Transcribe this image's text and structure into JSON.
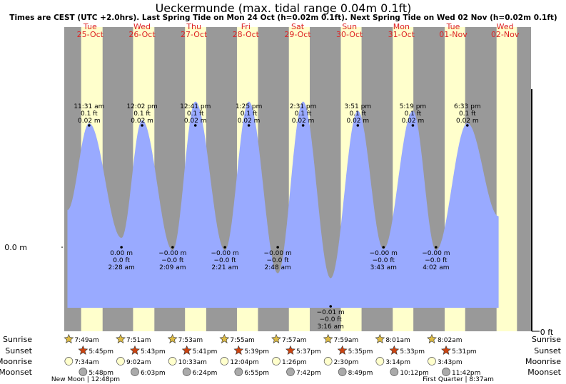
{
  "chart_data": {
    "type": "area",
    "title": "Ueckermunde (max. tidal range 0.04m 0.1ft)",
    "subtitle": "Times are CEST (UTC +2.0hrs). Last Spring Tide on Mon 24 Oct (h=0.02m 0.1ft). Next Spring Tide on Wed 02 Nov (h=0.02m 0.1ft)",
    "x_range_hours": [
      0,
      216
    ],
    "y_range_m": [
      -0.0185,
      0.0265
    ],
    "y_axis_left_label": "0.0 m",
    "y_axis_right_label": "0 ft",
    "days": [
      {
        "dow": "Tue",
        "date": "25-Oct",
        "sunrise": "7:49am",
        "sunset": "5:45pm",
        "moonrise": "7:34am",
        "moonset": "5:48pm",
        "rise_h": 7.817,
        "set_h": 17.75
      },
      {
        "dow": "Wed",
        "date": "26-Oct",
        "sunrise": "7:51am",
        "sunset": "5:43pm",
        "moonrise": "9:02am",
        "moonset": "6:03pm",
        "rise_h": 7.85,
        "set_h": 17.717
      },
      {
        "dow": "Thu",
        "date": "27-Oct",
        "sunrise": "7:53am",
        "sunset": "5:41pm",
        "moonrise": "10:33am",
        "moonset": "6:24pm",
        "rise_h": 7.883,
        "set_h": 17.683
      },
      {
        "dow": "Fri",
        "date": "28-Oct",
        "sunrise": "7:55am",
        "sunset": "5:39pm",
        "moonrise": "12:04pm",
        "moonset": "6:55pm",
        "rise_h": 7.917,
        "set_h": 17.65
      },
      {
        "dow": "Sat",
        "date": "29-Oct",
        "sunrise": "7:57am",
        "sunset": "5:37pm",
        "moonrise": "1:26pm",
        "moonset": "7:42pm",
        "rise_h": 7.95,
        "set_h": 17.617
      },
      {
        "dow": "Sun",
        "date": "30-Oct",
        "sunrise": "7:59am",
        "sunset": "5:35pm",
        "moonrise": "2:30pm",
        "moonset": "8:49pm",
        "rise_h": 7.983,
        "set_h": 17.583
      },
      {
        "dow": "Mon",
        "date": "31-Oct",
        "sunrise": "8:01am",
        "sunset": "5:33pm",
        "moonrise": "3:14pm",
        "moonset": "10:12pm",
        "rise_h": 8.017,
        "set_h": 17.55
      },
      {
        "dow": "Tue",
        "date": "01-Nov",
        "sunrise": "8:02am",
        "sunset": "5:31pm",
        "moonrise": "3:43pm",
        "moonset": "11:42pm",
        "rise_h": 8.033,
        "set_h": 17.517
      },
      {
        "dow": "Wed",
        "date": "02-Nov",
        "sunrise": "",
        "sunset": "",
        "moonrise": "",
        "moonset": "",
        "rise_h": 8.05,
        "set_h": 17.5
      }
    ],
    "tides": [
      {
        "type": "high",
        "time": "11:31 am",
        "ft": "0.1 ft",
        "m": "0.02 m",
        "t": 11.517,
        "h": 0.02
      },
      {
        "type": "low",
        "time": "2:28 am",
        "ft": "0.0 ft",
        "m": "0.00 m",
        "t": 26.467,
        "h": 0.0015
      },
      {
        "type": "high",
        "time": "12:02 pm",
        "ft": "0.1 ft",
        "m": "0.02 m",
        "t": 36.033,
        "h": 0.0205
      },
      {
        "type": "low",
        "time": "2:09 am",
        "ft": "−0.0 ft",
        "m": "−0.00 m",
        "t": 50.15,
        "h": -0.0005
      },
      {
        "type": "high",
        "time": "12:41 pm",
        "ft": "0.1 ft",
        "m": "0.02 m",
        "t": 60.683,
        "h": 0.0235
      },
      {
        "type": "low",
        "time": "2:21 am",
        "ft": "−0.0 ft",
        "m": "−0.00 m",
        "t": 74.35,
        "h": -0.0005
      },
      {
        "type": "high",
        "time": "1:25 pm",
        "ft": "0.1 ft",
        "m": "0.02 m",
        "t": 85.417,
        "h": 0.0235
      },
      {
        "type": "low",
        "time": "2:48 am",
        "ft": "−0.0 ft",
        "m": "−0.00 m",
        "t": 98.8,
        "h": -0.0042
      },
      {
        "type": "high",
        "time": "2:31 pm",
        "ft": "0.1 ft",
        "m": "0.02 m",
        "t": 110.517,
        "h": 0.0235
      },
      {
        "type": "low",
        "time": "3:16 am",
        "ft": "−0.0 ft",
        "m": "−0.01 m",
        "t": 123.267,
        "h": -0.005
      },
      {
        "type": "high",
        "time": "3:51 pm",
        "ft": "0.1 ft",
        "m": "0.02 m",
        "t": 135.85,
        "h": 0.022
      },
      {
        "type": "low",
        "time": "3:43 am",
        "ft": "−0.0 ft",
        "m": "−0.00 m",
        "t": 147.717,
        "h": -0.0003
      },
      {
        "type": "high",
        "time": "5:19 pm",
        "ft": "0.1 ft",
        "m": "0.02 m",
        "t": 161.317,
        "h": 0.022
      },
      {
        "type": "low",
        "time": "4:02 am",
        "ft": "−0.0 ft",
        "m": "−0.00 m",
        "t": 172.033,
        "h": -0.0005
      },
      {
        "type": "high",
        "time": "6:33 pm",
        "ft": "0.1 ft",
        "m": "0.02 m",
        "t": 186.55,
        "h": 0.02
      }
    ],
    "tide_start": {
      "t": 1.5,
      "h": 0.006
    },
    "tide_end": {
      "t": 201.0,
      "h": 0.005
    },
    "row_labels": [
      "Sunrise",
      "Sunset",
      "Moonrise",
      "Moonset"
    ],
    "moon_phases": [
      {
        "label": "New Moon",
        "time": "12:48pm"
      },
      {
        "label": "First Quarter",
        "time": "8:37am"
      }
    ]
  },
  "colors": {
    "night": "#999999",
    "day": "#ffffcc",
    "water": "#99aaff",
    "red_text": "#dd2222",
    "sun_star": "#ddbb44",
    "sunset_star": "#cc4411",
    "moonrise_fill": "#ffffcc",
    "moonset_fill": "#aaaaaa"
  }
}
